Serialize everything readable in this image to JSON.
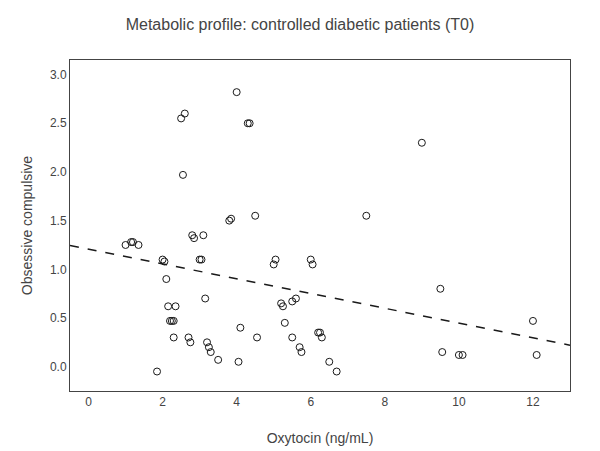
{
  "chart_data": {
    "type": "scatter",
    "title": "Metabolic profile: controlled diabetic patients (T0)",
    "xlabel": "Oxytocin (ng/mL)",
    "ylabel": "Obsessive compulsive",
    "xlim": [
      -0.5,
      13.0
    ],
    "ylim": [
      -0.25,
      3.15
    ],
    "xticks": [
      0,
      2,
      4,
      6,
      8,
      10,
      12
    ],
    "yticks": [
      {
        "value": 0,
        "label": "0.0"
      },
      0.5,
      {
        "value": 1.0,
        "label": "1.0"
      },
      1.5,
      {
        "value": 2.0,
        "label": "2.0"
      },
      2.5,
      {
        "value": 3.0,
        "label": "3.0"
      }
    ],
    "grid": false,
    "series": [
      {
        "type": "scatter",
        "color": "#1a1a1a",
        "marker": "open circle",
        "x": [
          1.0,
          1.15,
          1.2,
          1.35,
          1.85,
          2.0,
          2.05,
          2.1,
          2.15,
          2.2,
          2.25,
          2.3,
          2.3,
          2.35,
          2.5,
          2.55,
          2.6,
          2.7,
          2.75,
          2.8,
          2.85,
          3.0,
          3.05,
          3.1,
          3.15,
          3.2,
          3.25,
          3.3,
          3.5,
          3.8,
          3.85,
          4.0,
          4.05,
          4.1,
          4.3,
          4.35,
          4.5,
          4.55,
          5.0,
          5.05,
          5.2,
          5.25,
          5.3,
          5.5,
          5.5,
          5.6,
          5.7,
          5.75,
          6.0,
          6.05,
          6.2,
          6.25,
          6.3,
          6.5,
          6.7,
          7.5,
          9.0,
          9.5,
          9.55,
          10.0,
          10.1,
          12.0,
          12.1
        ],
        "values": [
          1.25,
          1.28,
          1.28,
          1.25,
          -0.05,
          1.1,
          1.08,
          0.9,
          0.62,
          0.47,
          0.47,
          0.3,
          0.47,
          0.62,
          2.55,
          1.97,
          2.6,
          0.3,
          0.25,
          1.35,
          1.32,
          1.1,
          1.1,
          1.35,
          0.7,
          0.25,
          0.2,
          0.15,
          0.07,
          1.5,
          1.52,
          2.82,
          0.05,
          0.4,
          2.5,
          2.5,
          1.55,
          0.3,
          1.05,
          1.1,
          0.65,
          0.62,
          0.45,
          0.3,
          0.67,
          0.7,
          0.2,
          0.15,
          1.1,
          1.05,
          0.35,
          0.35,
          0.3,
          0.05,
          -0.05,
          1.55,
          2.3,
          0.8,
          0.15,
          0.12,
          0.12,
          0.47,
          0.12
        ]
      },
      {
        "type": "line",
        "color": "#1a1a1a",
        "line_style": "dashed",
        "x": [
          -0.5,
          13.0
        ],
        "values": [
          1.245,
          0.22
        ]
      }
    ]
  }
}
